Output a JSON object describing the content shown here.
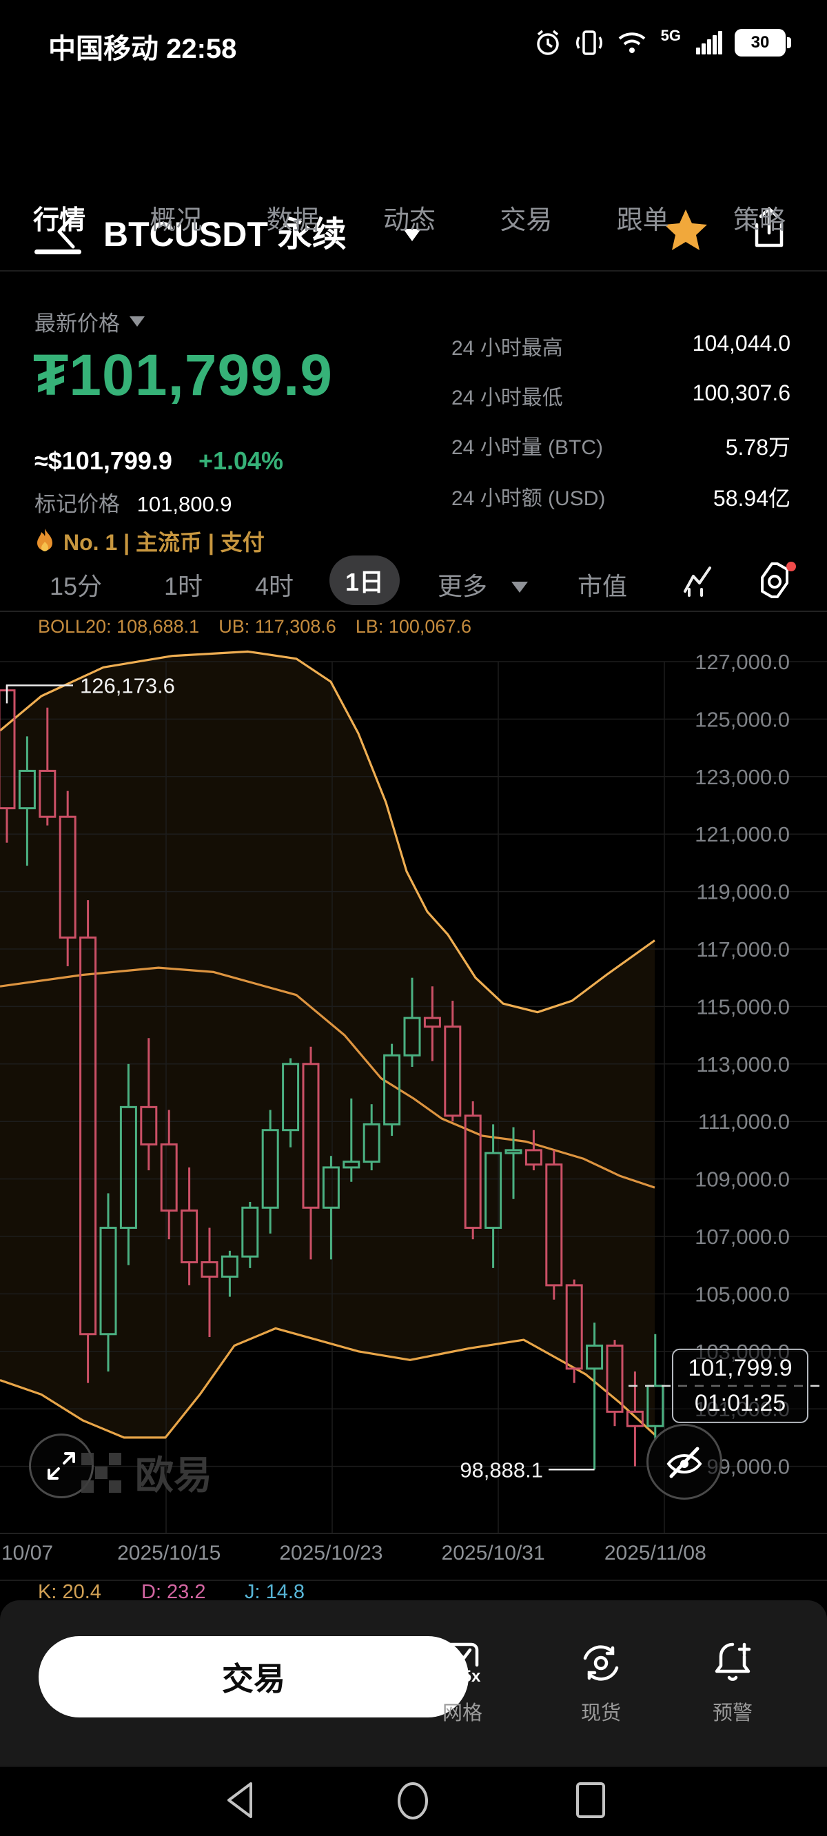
{
  "status_bar": {
    "left": "中国移动 22:58",
    "network": "5G",
    "battery": "30"
  },
  "header": {
    "title": "BTCUSDT 永续"
  },
  "tabs": {
    "items": [
      "行情",
      "概况",
      "数据",
      "动态",
      "交易",
      "跟单",
      "策略"
    ],
    "active": "行情"
  },
  "price_panel": {
    "label": "最新价格",
    "price": "₮101,799.9",
    "usd": "≈$101,799.9",
    "change": "+1.04%",
    "mark_label": "标记价格",
    "mark_value": "101,800.9",
    "tags": "No. 1 | 主流币 | 支付"
  },
  "stats": {
    "rows": [
      {
        "label": "24 小时最高",
        "value": "104,044.0"
      },
      {
        "label": "24 小时最低",
        "value": "100,307.6"
      },
      {
        "label": "24 小时量 (BTC)",
        "value": "5.78万"
      },
      {
        "label": "24 小时额 (USD)",
        "value": "58.94亿"
      }
    ]
  },
  "toolbar": {
    "timeframes": [
      "15分",
      "1时",
      "4时",
      "1日"
    ],
    "active": "1日",
    "more": "更多",
    "market_cap": "市值"
  },
  "watermark": {
    "text": "欧易"
  },
  "bottom_bar": {
    "trade": "交易",
    "items": [
      {
        "label": "网格",
        "badge": "5x"
      },
      {
        "label": "现货",
        "badge": ""
      },
      {
        "label": "预警",
        "badge": ""
      }
    ]
  },
  "chart_data": {
    "type": "candlestick",
    "symbol": "BTCUSDT perpetual",
    "interval": "1日",
    "indicator": {
      "boll": "BOLL20: 108,688.1",
      "ub": "UB: 117,308.6",
      "lb": "LB: 100,067.6"
    },
    "y_ticks": [
      {
        "p": 127000,
        "t": "127,000.0"
      },
      {
        "p": 125000,
        "t": "125,000.0"
      },
      {
        "p": 123000,
        "t": "123,000.0"
      },
      {
        "p": 121000,
        "t": "121,000.0"
      },
      {
        "p": 119000,
        "t": "119,000.0"
      },
      {
        "p": 117000,
        "t": "117,000.0"
      },
      {
        "p": 115000,
        "t": "115,000.0"
      },
      {
        "p": 113000,
        "t": "113,000.0"
      },
      {
        "p": 111000,
        "t": "111,000.0"
      },
      {
        "p": 109000,
        "t": "109,000.0"
      },
      {
        "p": 107000,
        "t": "107,000.0"
      },
      {
        "p": 105000,
        "t": "105,000.0"
      },
      {
        "p": 103000,
        "t": "103,000.0"
      },
      {
        "p": 101000,
        "t": "101,000.0"
      },
      {
        "p": 99000,
        "t": "99,000.0"
      }
    ],
    "x_ticks": [
      {
        "i": 1,
        "t": "10/07",
        "anchor": "start"
      },
      {
        "i": 9,
        "t": "2025/10/15"
      },
      {
        "i": 17,
        "t": "2025/10/23"
      },
      {
        "i": 25,
        "t": "2025/10/31"
      },
      {
        "i": 33,
        "t": "2025/11/08"
      }
    ],
    "candles": [
      [
        "2025/10/07",
        126000,
        126173.6,
        120700,
        121900
      ],
      [
        "2025/10/08",
        121900,
        124400,
        119900,
        123200
      ],
      [
        "2025/10/09",
        123200,
        125400,
        121300,
        121600
      ],
      [
        "2025/10/10",
        121600,
        122500,
        116400,
        117400
      ],
      [
        "2025/10/11",
        117400,
        118700,
        101900,
        103600
      ],
      [
        "2025/10/12",
        103600,
        108500,
        102300,
        107300
      ],
      [
        "2025/10/13",
        107300,
        113000,
        106000,
        111500
      ],
      [
        "2025/10/14",
        111500,
        113900,
        109300,
        110200
      ],
      [
        "2025/10/15",
        110200,
        111400,
        106900,
        107900
      ],
      [
        "2025/10/16",
        107900,
        109400,
        105300,
        106100
      ],
      [
        "2025/10/17",
        106100,
        107300,
        103500,
        105600
      ],
      [
        "2025/10/18",
        105600,
        106500,
        104900,
        106300
      ],
      [
        "2025/10/19",
        106300,
        108200,
        105900,
        108000
      ],
      [
        "2025/10/20",
        108000,
        111400,
        107100,
        110700
      ],
      [
        "2025/10/21",
        110700,
        113200,
        110100,
        113000
      ],
      [
        "2025/10/22",
        113000,
        113600,
        106200,
        108000
      ],
      [
        "2025/10/23",
        108000,
        109800,
        106200,
        109400
      ],
      [
        "2025/10/24",
        109400,
        111800,
        108900,
        109600
      ],
      [
        "2025/10/25",
        109600,
        111600,
        109300,
        110900
      ],
      [
        "2025/10/26",
        110900,
        113700,
        110500,
        113300
      ],
      [
        "2025/10/27",
        113300,
        116000,
        112900,
        114600
      ],
      [
        "2025/10/28",
        114600,
        115700,
        113100,
        114300
      ],
      [
        "2025/10/29",
        114300,
        115200,
        111000,
        111200
      ],
      [
        "2025/10/30",
        111200,
        111700,
        106900,
        107300
      ],
      [
        "2025/10/31",
        107300,
        110900,
        105900,
        109900
      ],
      [
        "2025/11/01",
        109900,
        110800,
        108300,
        110000
      ],
      [
        "2025/11/02",
        110000,
        110700,
        109300,
        109500
      ],
      [
        "2025/11/03",
        109500,
        110000,
        104800,
        105300
      ],
      [
        "2025/11/04",
        105300,
        105500,
        101900,
        102400
      ],
      [
        "2025/11/05",
        102400,
        104000,
        98888.1,
        103200
      ],
      [
        "2025/11/06",
        103200,
        103400,
        100400,
        100900
      ],
      [
        "2025/11/07",
        100900,
        102300,
        99000,
        100400
      ],
      [
        "2025/11/08",
        100400,
        103600,
        99900,
        101799.9
      ]
    ],
    "bands": {
      "upper": [
        [
          0,
          124600
        ],
        [
          60,
          125800
        ],
        [
          150,
          126800
        ],
        [
          250,
          127200
        ],
        [
          360,
          127350
        ],
        [
          430,
          127100
        ],
        [
          480,
          126300
        ],
        [
          520,
          124500
        ],
        [
          560,
          122100
        ],
        [
          590,
          119700
        ],
        [
          620,
          118300
        ],
        [
          650,
          117500
        ],
        [
          690,
          116000
        ],
        [
          730,
          115100
        ],
        [
          780,
          114800
        ],
        [
          830,
          115200
        ],
        [
          880,
          116100
        ],
        [
          950,
          117300
        ]
      ],
      "middle": [
        [
          0,
          115700
        ],
        [
          120,
          116100
        ],
        [
          230,
          116350
        ],
        [
          310,
          116200
        ],
        [
          430,
          115400
        ],
        [
          500,
          114000
        ],
        [
          553,
          112500
        ],
        [
          600,
          111800
        ],
        [
          641,
          111100
        ],
        [
          700,
          110500
        ],
        [
          763,
          110300
        ],
        [
          847,
          109700
        ],
        [
          900,
          109100
        ],
        [
          950,
          108700
        ]
      ],
      "lower": [
        [
          0,
          102000
        ],
        [
          60,
          101500
        ],
        [
          120,
          100600
        ],
        [
          180,
          100000
        ],
        [
          240,
          100000
        ],
        [
          290,
          101500
        ],
        [
          340,
          103200
        ],
        [
          400,
          103800
        ],
        [
          460,
          103400
        ],
        [
          520,
          103000
        ],
        [
          595,
          102700
        ],
        [
          680,
          103100
        ],
        [
          760,
          103400
        ],
        [
          850,
          102200
        ],
        [
          900,
          101200
        ],
        [
          950,
          100100
        ]
      ]
    },
    "annotations": {
      "high": {
        "text": "126,173.6",
        "price": 126173.6,
        "candle": 1
      },
      "low": {
        "text": "98,888.1",
        "price": 98888.1,
        "candle": 30
      },
      "current": {
        "price": 101799.9,
        "label": "101,799.9",
        "countdown": "01:01:25"
      }
    },
    "kdj": [
      {
        "t": "K: 20.4",
        "c": "#d2a155"
      },
      {
        "t": "D: 23.2",
        "c": "#d466a2"
      },
      {
        "t": "J: 14.8",
        "c": "#57b5d6"
      }
    ],
    "colors": {
      "up": "#4bb182",
      "down": "#cb5066",
      "band": "#e2a046",
      "fill": "rgba(222,150,60,0.09)",
      "grid": "#1d1d1d",
      "axis_text": "#8d9196"
    },
    "ylim": [
      98500,
      127600
    ],
    "legend_position": "top-left",
    "grid": true
  }
}
